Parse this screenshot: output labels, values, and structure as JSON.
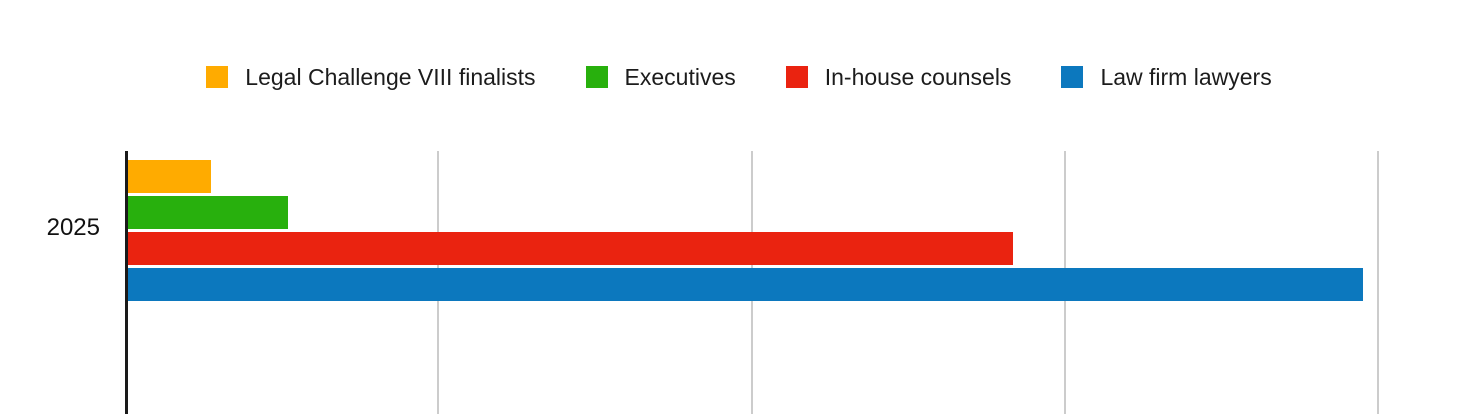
{
  "chart_data": {
    "type": "bar",
    "orientation": "horizontal",
    "title": "",
    "categories": [
      "2025"
    ],
    "series": [
      {
        "name": "Legal Challenge VIII finalists",
        "color": "#FFAB00",
        "values": [
          6.7
        ]
      },
      {
        "name": "Executives",
        "color": "#28B00D",
        "values": [
          12.8
        ]
      },
      {
        "name": "In-house counsels",
        "color": "#EA2310",
        "values": [
          70.7
        ]
      },
      {
        "name": "Law firm lawyers",
        "color": "#0C78BE",
        "values": [
          98.6
        ]
      }
    ],
    "xlim": [
      0,
      100
    ],
    "x_gridlines": [
      25,
      50,
      75,
      100
    ],
    "x_tick_labels_visible": false,
    "legend_position": "top",
    "grid": "vertical-only"
  },
  "colors": {
    "axis": "#1a1a1a",
    "gridline": "#cccccc",
    "background": "#ffffff",
    "legend_text": "#1c1c1c"
  }
}
